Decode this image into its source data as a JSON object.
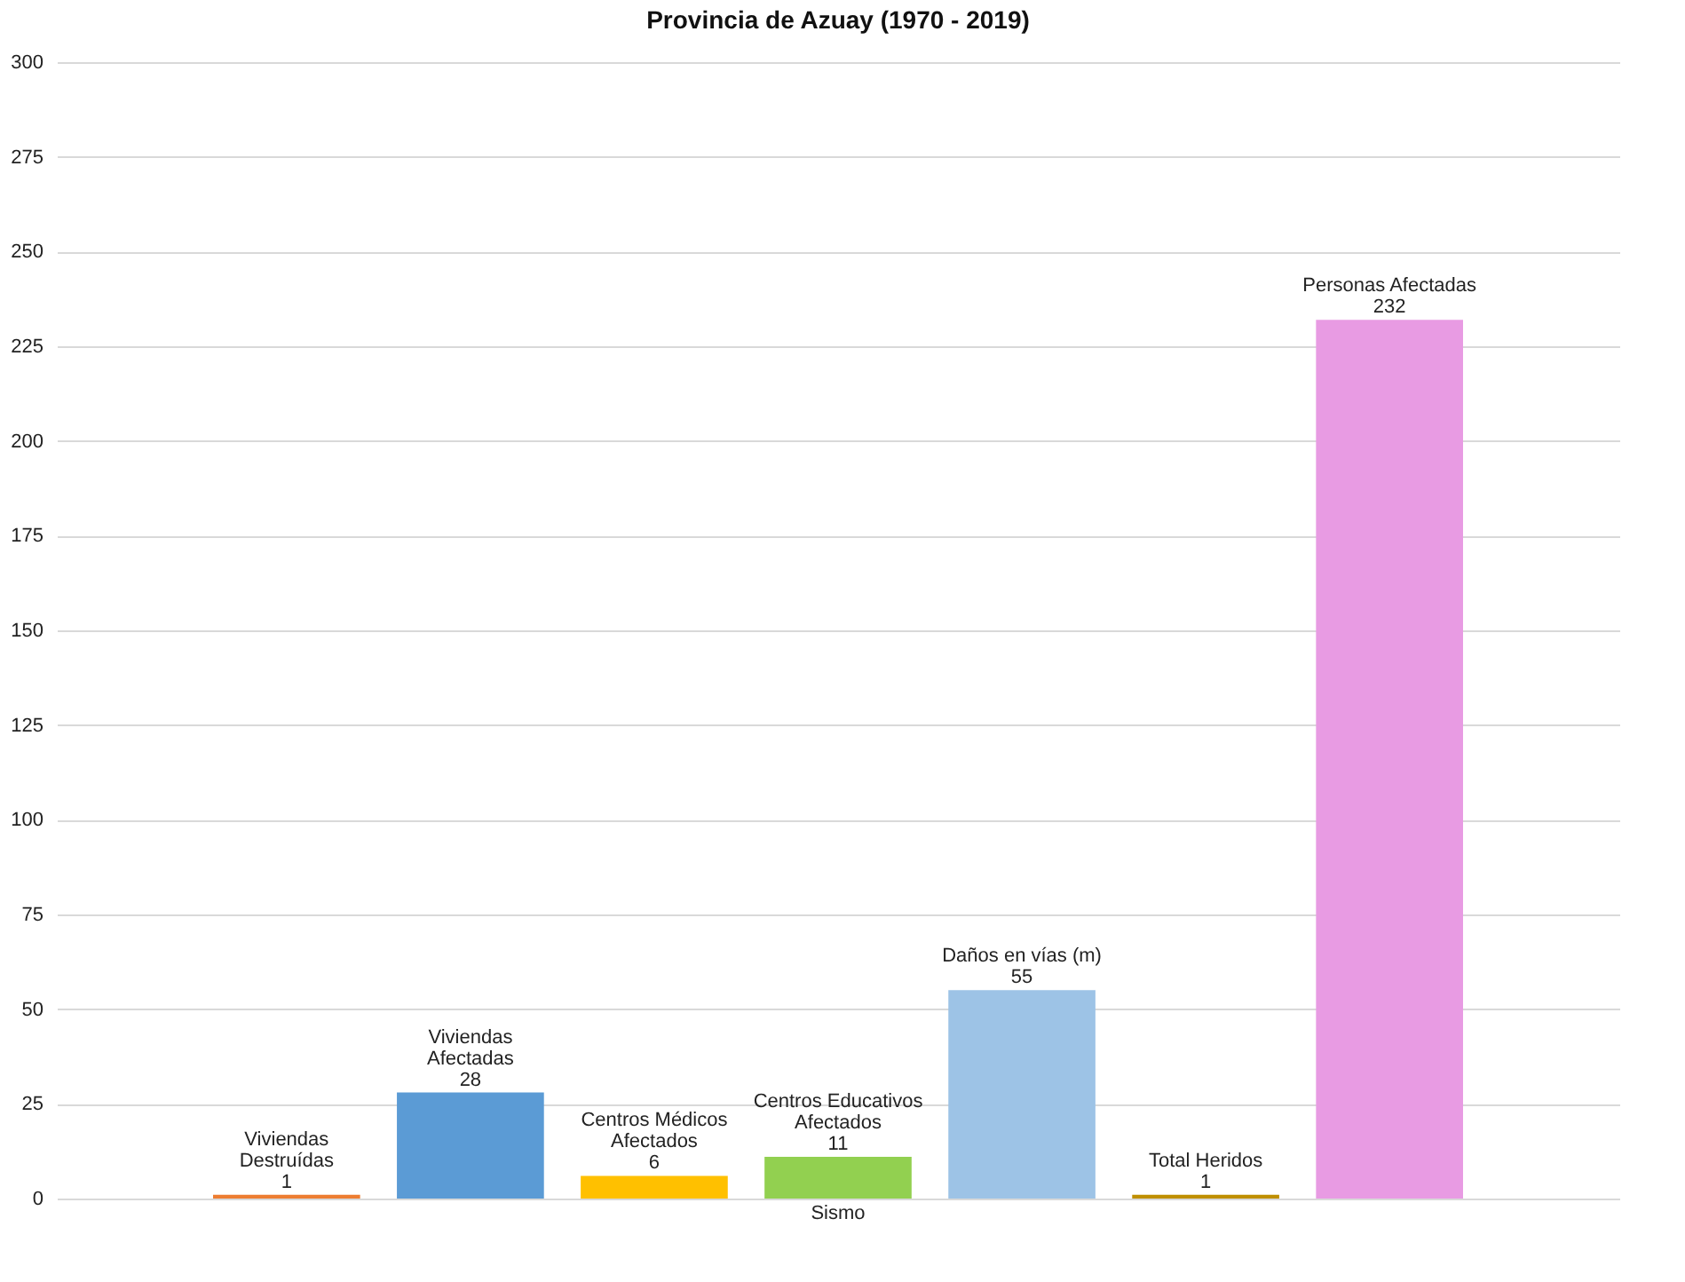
{
  "chart_data": {
    "type": "bar",
    "title": "Provincia de Azuay (1970 - 2019)",
    "categories": [
      "Sismo"
    ],
    "series": [
      {
        "name": "Viviendas Destruídas",
        "color": "#ed7d31",
        "values": [
          1
        ]
      },
      {
        "name": "Viviendas Afectadas",
        "color": "#5b9bd5",
        "values": [
          28
        ]
      },
      {
        "name": "Centros Médicos Afectados",
        "color": "#ffc000",
        "values": [
          6
        ]
      },
      {
        "name": "Centros Educativos Afectados",
        "color": "#92d050",
        "values": [
          11
        ]
      },
      {
        "name": "Daños en vías (m)",
        "color": "#9dc3e6",
        "values": [
          55
        ]
      },
      {
        "name": "Total Heridos",
        "color": "#bf8f00",
        "values": [
          1
        ]
      },
      {
        "name": "Personas Afectadas",
        "color": "#e89be3",
        "values": [
          232
        ]
      }
    ],
    "ylim": [
      0,
      300
    ],
    "yticks": [
      0,
      25,
      50,
      75,
      100,
      125,
      150,
      175,
      200,
      225,
      250,
      275,
      300
    ],
    "grid": "y",
    "legend": false,
    "data_labels": true
  }
}
